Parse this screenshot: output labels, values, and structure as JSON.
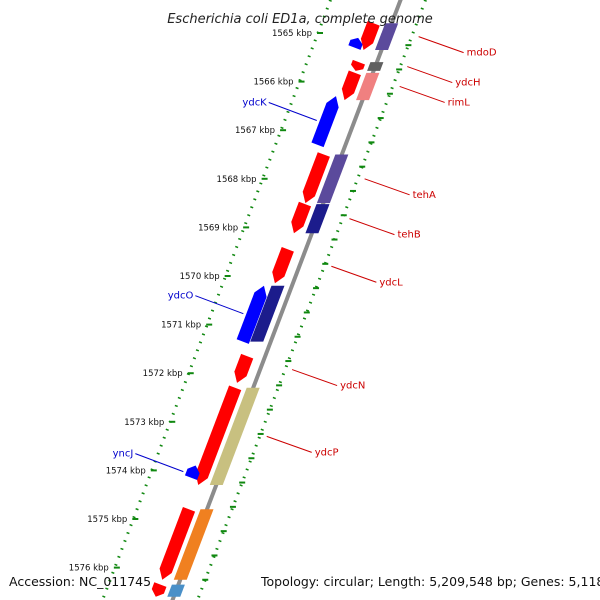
{
  "title": "Escherichia coli ED1a, complete genome",
  "footer": {
    "accession": "Accession: NC_011745",
    "topology": "Topology: circular; Length: 5,209,548 bp; Genes: 5,118"
  },
  "colors": {
    "backbone": "#8c8c8c",
    "dots": "#108810",
    "forward_label": "#0000cc",
    "reverse_label": "#cc0000"
  },
  "ruler": [
    {
      "label": "1565 kbp",
      "kbp": 1565
    },
    {
      "label": "1566 kbp",
      "kbp": 1566
    },
    {
      "label": "1567 kbp",
      "kbp": 1567
    },
    {
      "label": "1568 kbp",
      "kbp": 1568
    },
    {
      "label": "1569 kbp",
      "kbp": 1569
    },
    {
      "label": "1570 kbp",
      "kbp": 1570
    },
    {
      "label": "1571 kbp",
      "kbp": 1571
    },
    {
      "label": "1572 kbp",
      "kbp": 1572
    },
    {
      "label": "1573 kbp",
      "kbp": 1573
    },
    {
      "label": "1574 kbp",
      "kbp": 1574
    },
    {
      "label": "1575 kbp",
      "kbp": 1575
    },
    {
      "label": "1576 kbp",
      "kbp": 1576
    }
  ],
  "features": [
    {
      "name": "mdoD",
      "strand": "reverse",
      "labeled": true,
      "color": "#ff0000",
      "companion_color": "#5b4a9c",
      "kbp_start": 1564.8,
      "kbp_end": 1565.35
    },
    {
      "name": "ydcH",
      "strand": "reverse",
      "labeled": true,
      "color": "#ff0000",
      "companion_color": "#606060",
      "kbp_start": 1565.6,
      "kbp_end": 1565.78
    },
    {
      "name": "rimL",
      "strand": "reverse",
      "labeled": true,
      "color": "#ff0000",
      "companion_color": "#f08080",
      "kbp_start": 1565.82,
      "kbp_end": 1566.38
    },
    {
      "name": "ydcK",
      "strand": "forward",
      "labeled": true,
      "color": "#0000ff",
      "companion_color": "",
      "kbp_start": 1566.3,
      "kbp_end": 1567.3
    },
    {
      "name": "",
      "strand": "forward",
      "labeled": false,
      "color": "#0000ff",
      "companion_color": "",
      "kbp_start": 1565.1,
      "kbp_end": 1565.3
    },
    {
      "name": "tehA",
      "strand": "reverse",
      "labeled": true,
      "color": "#ff0000",
      "companion_color": "#5b4a9c",
      "kbp_start": 1567.5,
      "kbp_end": 1568.5
    },
    {
      "name": "tehB",
      "strand": "reverse",
      "labeled": true,
      "color": "#ff0000",
      "companion_color": "#1c1c8c",
      "kbp_start": 1568.52,
      "kbp_end": 1569.12
    },
    {
      "name": "ydcL",
      "strand": "reverse",
      "labeled": true,
      "color": "#ff0000",
      "companion_color": "",
      "kbp_start": 1569.45,
      "kbp_end": 1570.15
    },
    {
      "name": "ydcO",
      "strand": "forward",
      "labeled": true,
      "color": "#0000ff",
      "companion_color": "#1c1c8c",
      "kbp_start": 1570.2,
      "kbp_end": 1571.35
    },
    {
      "name": "ydcN",
      "strand": "reverse",
      "labeled": true,
      "color": "#ff0000",
      "companion_color": "",
      "kbp_start": 1571.65,
      "kbp_end": 1572.2
    },
    {
      "name": "ydcP",
      "strand": "reverse",
      "labeled": true,
      "color": "#ff0000",
      "companion_color": "#c8c080",
      "kbp_start": 1572.3,
      "kbp_end": 1574.3
    },
    {
      "name": "yncJ",
      "strand": "forward",
      "labeled": true,
      "color": "#0000ff",
      "companion_color": "",
      "kbp_start": 1573.9,
      "kbp_end": 1574.15
    },
    {
      "name": "",
      "strand": "reverse",
      "labeled": false,
      "color": "#ff0000",
      "companion_color": "#f08020",
      "kbp_start": 1574.8,
      "kbp_end": 1576.25
    },
    {
      "name": "",
      "strand": "reverse",
      "labeled": false,
      "color": "#ff0000",
      "companion_color": "#4a90c8",
      "kbp_start": 1576.35,
      "kbp_end": 1576.6
    }
  ]
}
